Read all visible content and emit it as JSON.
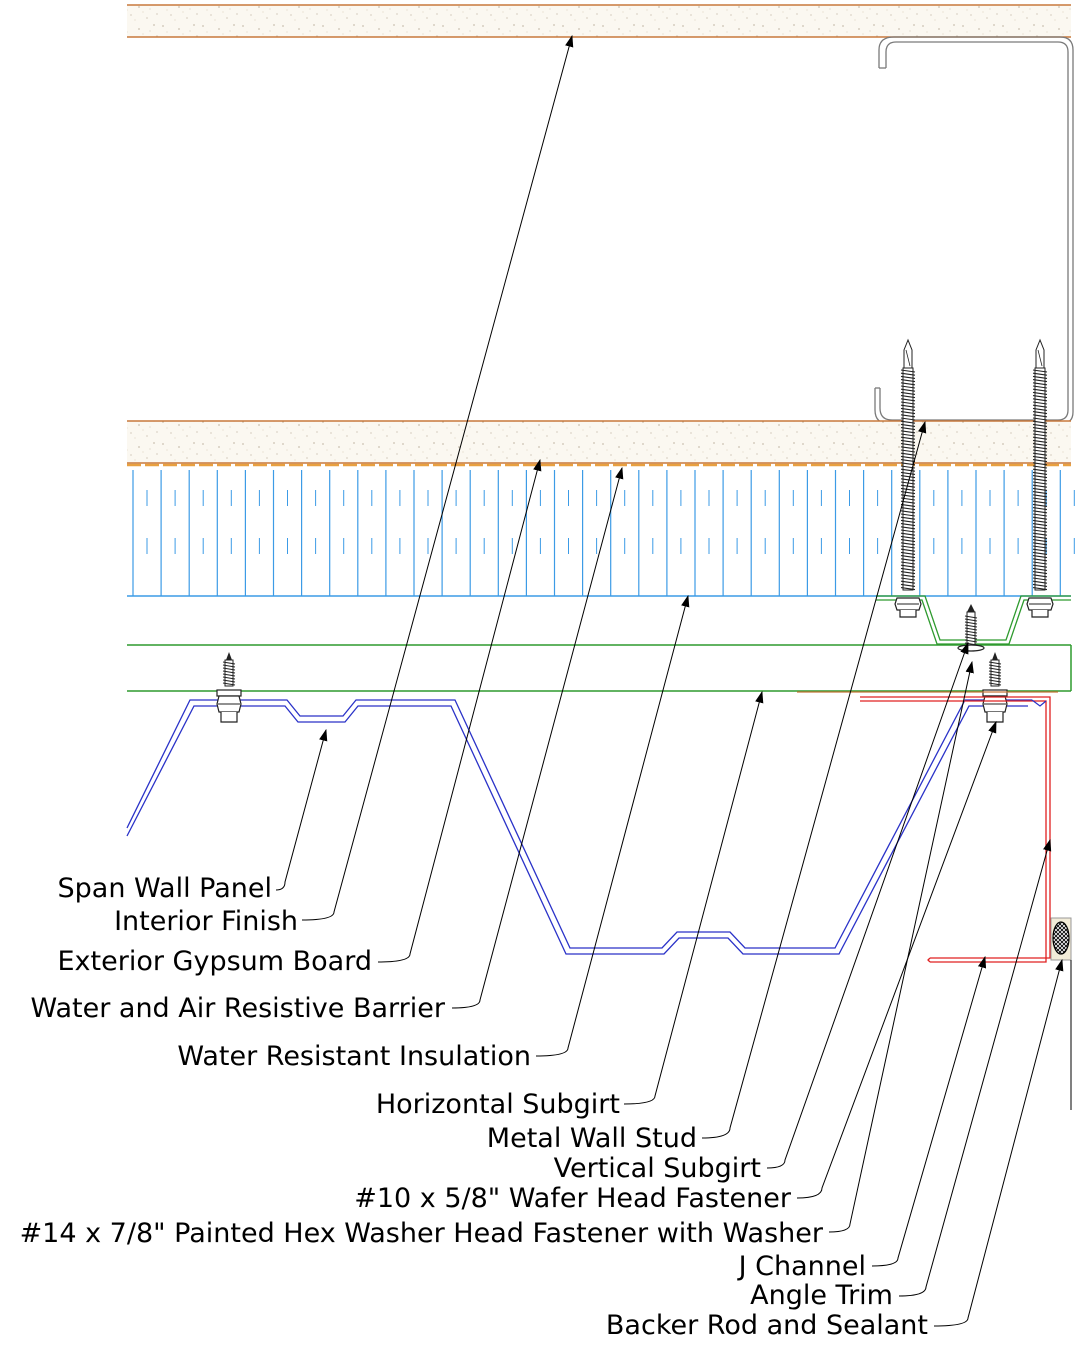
{
  "diagram": {
    "callouts": [
      {
        "id": "span-wall-panel",
        "label": "Span Wall Panel"
      },
      {
        "id": "interior-finish",
        "label": "Interior Finish"
      },
      {
        "id": "exterior-gypsum-board",
        "label": "Exterior Gypsum Board"
      },
      {
        "id": "water-air-barrier",
        "label": "Water and Air Resistive Barrier"
      },
      {
        "id": "water-resistant-insulation",
        "label": "Water Resistant Insulation"
      },
      {
        "id": "horizontal-subgirt",
        "label": "Horizontal Subgirt"
      },
      {
        "id": "metal-wall-stud",
        "label": "Metal Wall Stud"
      },
      {
        "id": "vertical-subgirt",
        "label": "Vertical Subgirt"
      },
      {
        "id": "wafer-head-fastener",
        "label": "#10 x 5/8\" Wafer Head Fastener"
      },
      {
        "id": "hex-washer-fastener",
        "label": "#14 x 7/8\" Painted Hex Washer Head Fastener with Washer"
      },
      {
        "id": "j-channel",
        "label": "J Channel"
      },
      {
        "id": "angle-trim",
        "label": "Angle Trim"
      },
      {
        "id": "backer-rod-sealant",
        "label": "Backer Rod and Sealant"
      }
    ],
    "colors": {
      "gypsum_fill": "#faf6ee",
      "gypsum_edge": "#c8783c",
      "insulation_line": "#3c9be6",
      "barrier_line": "#e8a040",
      "subgirt_line": "#2e9a2e",
      "panel_line": "#2a32c8",
      "trim_line": "#e02020",
      "stud_line": "#7a7a7a",
      "fastener": "#222222"
    }
  }
}
